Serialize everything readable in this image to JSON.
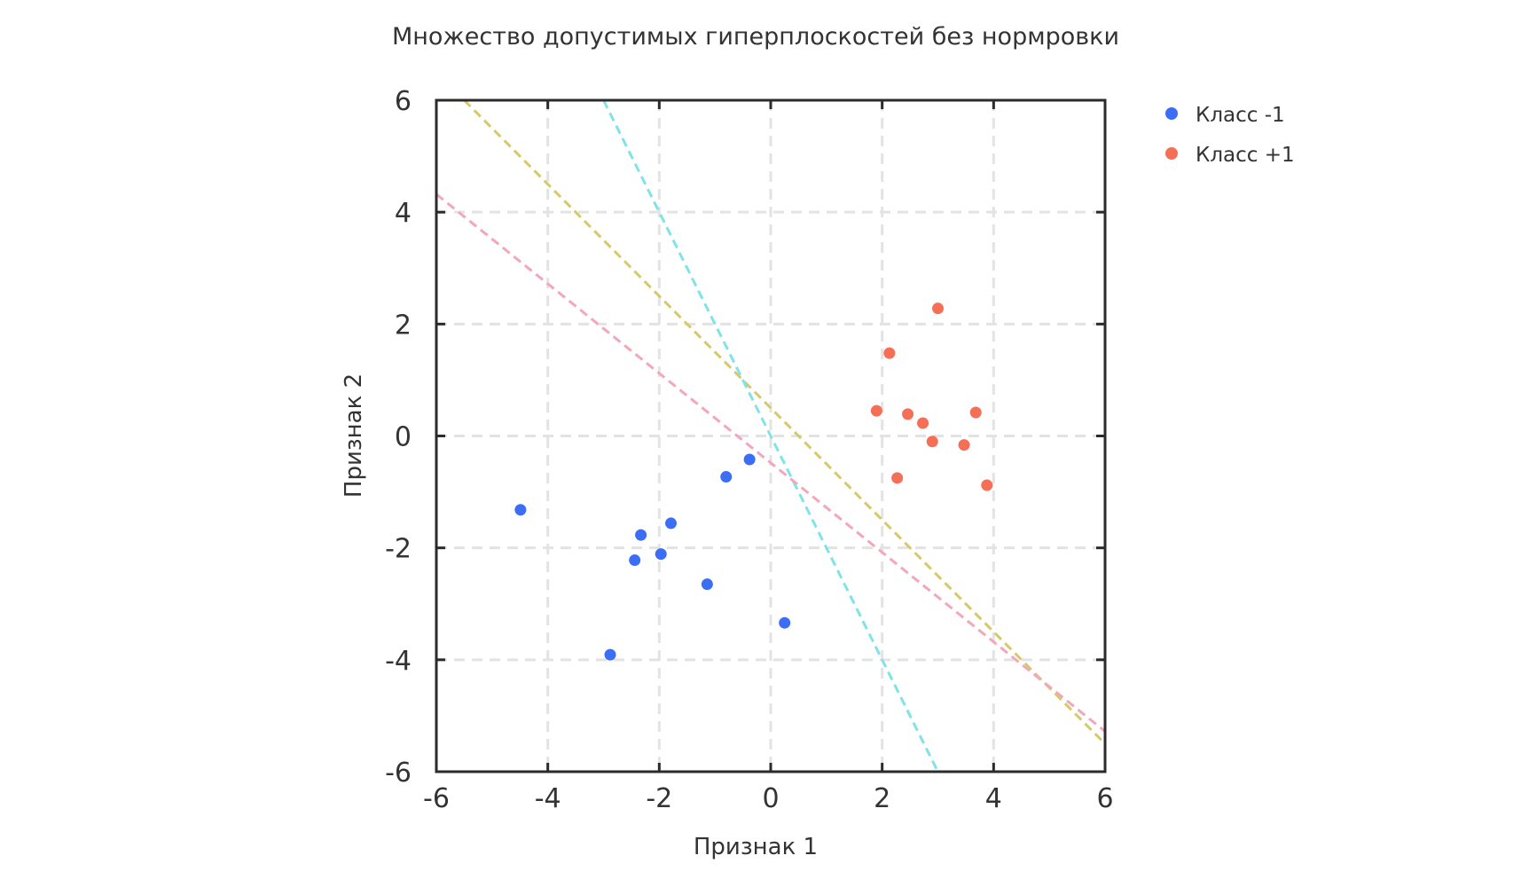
{
  "chart_data": {
    "type": "scatter",
    "title": "Множество допустимых гиперплоскостей без нормровки",
    "xlabel": "Признак 1",
    "ylabel": "Признак 2",
    "xlim": [
      -6,
      6
    ],
    "ylim": [
      -6,
      6
    ],
    "xticks": [
      -6,
      -4,
      -2,
      0,
      2,
      4,
      6
    ],
    "yticks": [
      -6,
      -4,
      -2,
      0,
      2,
      4,
      6
    ],
    "xtick_labels": [
      "-6",
      "-4",
      "-2",
      "0",
      "2",
      "4",
      "6"
    ],
    "ytick_labels": [
      "-6",
      "-4",
      "-2",
      "0",
      "2",
      "4",
      "6"
    ],
    "grid": true,
    "legend_position": "outside-right-top",
    "series": [
      {
        "name": "Класс -1",
        "color": "#3b6ef5",
        "points": [
          [
            -4.49,
            -1.32
          ],
          [
            -0.38,
            -0.42
          ],
          [
            -0.8,
            -0.73
          ],
          [
            -1.79,
            -1.56
          ],
          [
            -2.33,
            -1.77
          ],
          [
            -2.44,
            -2.22
          ],
          [
            -1.97,
            -2.11
          ],
          [
            -1.14,
            -2.65
          ],
          [
            0.25,
            -3.34
          ],
          [
            -2.88,
            -3.91
          ]
        ]
      },
      {
        "name": "Класс +1",
        "color": "#f56f57",
        "points": [
          [
            3.0,
            2.28
          ],
          [
            2.13,
            1.48
          ],
          [
            1.9,
            0.45
          ],
          [
            2.46,
            0.39
          ],
          [
            2.73,
            0.23
          ],
          [
            3.68,
            0.42
          ],
          [
            2.9,
            -0.1
          ],
          [
            3.47,
            -0.16
          ],
          [
            2.27,
            -0.75
          ],
          [
            3.88,
            -0.88
          ]
        ]
      }
    ],
    "lines": [
      {
        "style": "dashed",
        "color": "#d6c96a",
        "slope": -1.0,
        "intercept": 0.5
      },
      {
        "style": "dashed",
        "color": "#80e3e8",
        "slope": -2.0,
        "intercept": 0.0
      },
      {
        "style": "dashed",
        "color": "#f2a7ba",
        "slope": -0.8,
        "intercept": -0.48
      }
    ]
  }
}
